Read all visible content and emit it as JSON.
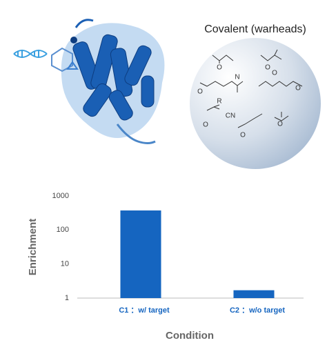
{
  "illustration": {
    "title": "Covalent (warheads)",
    "atom_labels": [
      "O",
      "O",
      "O",
      "N",
      "O",
      "O",
      "R",
      "CN",
      "O",
      "O",
      "O"
    ]
  },
  "chart_data": {
    "type": "bar",
    "x_label": "Condition",
    "y_label": "Enrichment",
    "categories": [
      "C1 ：w/ target",
      "C2 ：w/o target"
    ],
    "values": [
      375,
      1.7
    ],
    "color": "#1565c0",
    "log_scale": true,
    "ylim": [
      1,
      1000
    ],
    "yticks": [
      1,
      10,
      100,
      1000
    ],
    "grid": false
  }
}
